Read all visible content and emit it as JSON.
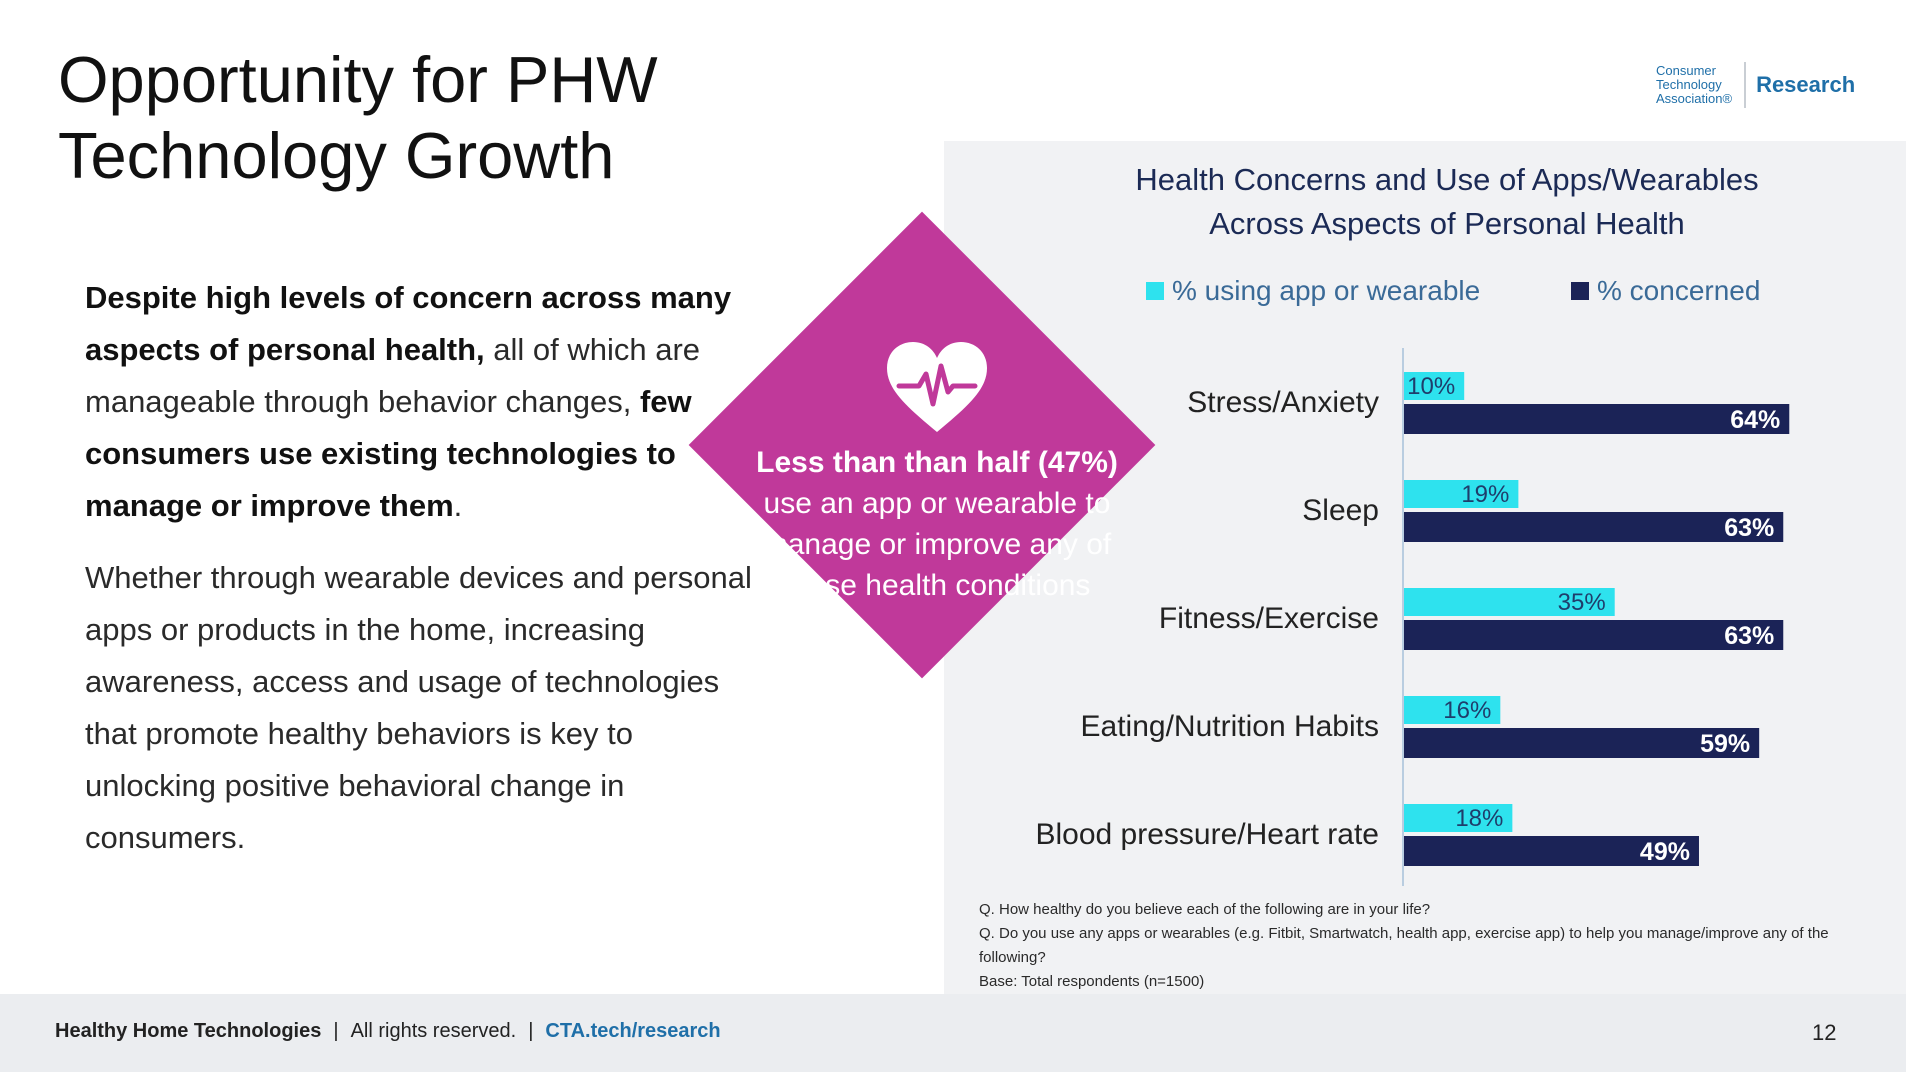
{
  "slide": {
    "title": "Opportunity for PHW\nTechnology Growth",
    "logo_org": "Consumer\nTechnology\nAssociation®",
    "logo_tag": "Research",
    "body_p1_bold1": "Despite high levels of concern across many aspects of personal health,",
    "body_p1_normal1": " all of which are manageable through behavior changes, ",
    "body_p1_bold2": "few consumers use existing technologies to manage or improve them",
    "body_p1_end": ".",
    "body_p2": "Whether through wearable devices and personal apps or products in the home, increasing awareness, access and usage of technologies that promote healthy behaviors is key to unlocking positive behavioral change in consumers.",
    "callout_strong": "Less than than half (47%)",
    "callout_rest": "use an app or wearable to manage or improve any of these health conditions",
    "notes": [
      "Q.  How healthy do you believe each of the following are in your life?",
      "Q.  Do you use any apps or wearables (e.g. Fitbit, Smartwatch, health app, exercise app) to help you manage/improve any of the following?",
      "Base: Total respondents (n=1500)"
    ],
    "footer_brand": "Healthy Home Technologies",
    "footer_rights": "All rights reserved.",
    "footer_link": "CTA.tech/research",
    "footer_sep": "|",
    "page_number": "12"
  },
  "colors": {
    "using": "#2ee2ee",
    "concerned": "#1b2357",
    "magenta": "#c0399a"
  },
  "chart_data": {
    "type": "bar",
    "orientation": "horizontal",
    "title": "Health Concerns and Use of Apps/Wearables\nAcross Aspects of Personal Health",
    "legend_position": "top",
    "categories": [
      "Stress/Anxiety",
      "Sleep",
      "Fitness/Exercise",
      "Eating/Nutrition Habits",
      "Blood pressure/Heart rate"
    ],
    "series": [
      {
        "name": "% using app or wearable",
        "values": [
          10,
          19,
          35,
          16,
          18
        ],
        "labels": [
          "10%",
          "19%",
          "35%",
          "16%",
          "18%"
        ]
      },
      {
        "name": "% concerned",
        "values": [
          64,
          63,
          63,
          59,
          49
        ],
        "labels": [
          "64%",
          "63%",
          "63%",
          "59%",
          "49%"
        ]
      }
    ],
    "xlim": [
      0,
      100
    ],
    "grid": false
  }
}
